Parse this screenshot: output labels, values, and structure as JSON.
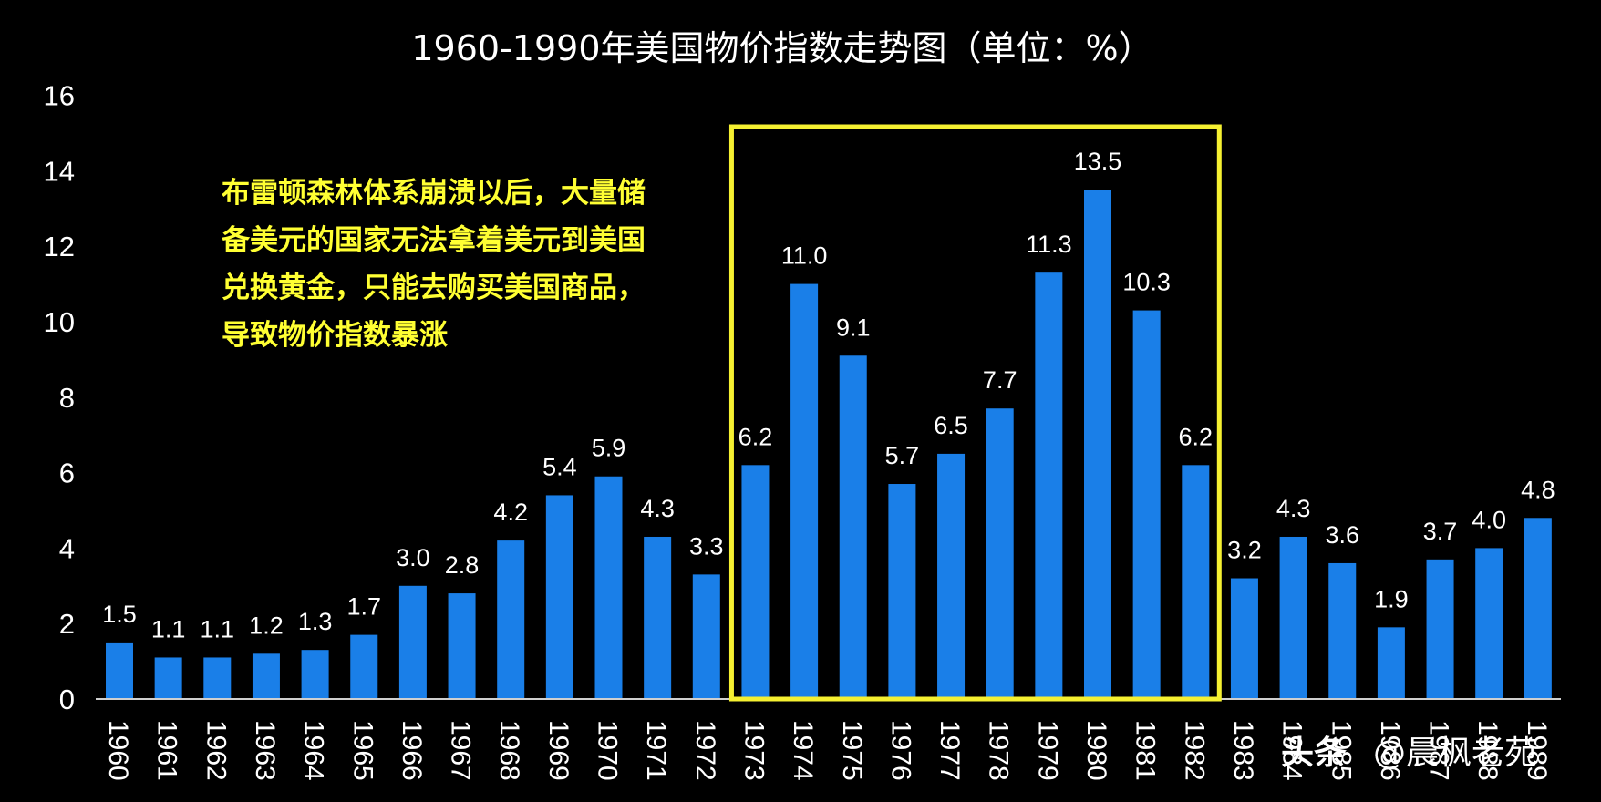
{
  "chart_data": {
    "type": "bar",
    "title": "1960-1990年美国物价指数走势图（单位：%）",
    "xlabel": "",
    "ylabel": "",
    "ylim": [
      0,
      16
    ],
    "yticks": [
      "0",
      "2",
      "4",
      "6",
      "8",
      "10",
      "12",
      "14",
      "16"
    ],
    "grid": false,
    "legend": "none",
    "categories": [
      "1960",
      "1961",
      "1962",
      "1963",
      "1964",
      "1965",
      "1966",
      "1967",
      "1968",
      "1969",
      "1970",
      "1971",
      "1972",
      "1973",
      "1974",
      "1975",
      "1976",
      "1977",
      "1978",
      "1979",
      "1980",
      "1981",
      "1982",
      "1983",
      "1984",
      "1985",
      "1986",
      "1987",
      "1988",
      "1989"
    ],
    "values": [
      1.5,
      1.1,
      1.1,
      1.2,
      1.3,
      1.7,
      3.0,
      2.8,
      4.2,
      5.4,
      5.9,
      4.3,
      3.3,
      6.2,
      11.0,
      9.1,
      5.7,
      6.5,
      7.7,
      11.3,
      13.5,
      10.3,
      6.2,
      3.2,
      4.3,
      3.6,
      1.9,
      3.7,
      4.0,
      4.8
    ],
    "value_labels": [
      "1.5",
      "1.1",
      "1.1",
      "1.2",
      "1.3",
      "1.7",
      "3.0",
      "2.8",
      "4.2",
      "5.4",
      "5.9",
      "4.3",
      "3.3",
      "6.2",
      "11.0",
      "9.1",
      "5.7",
      "6.5",
      "7.7",
      "11.3",
      "13.5",
      "10.3",
      "6.2",
      "3.2",
      "4.3",
      "3.6",
      "1.9",
      "3.7",
      "4.0",
      "4.8"
    ],
    "highlight_range": [
      "1973",
      "1982"
    ],
    "annotation": [
      "布雷顿森林体系崩溃以后，大量储",
      "备美元的国家无法拿着美元到美国",
      "兑换黄金，只能去购买美国商品，",
      "导致物价指数暴涨"
    ],
    "colors": {
      "background": "#000000",
      "bar": "#1a7fe8",
      "text": "#ffffff",
      "highlight": "#f5f031",
      "annotation": "#ffff33"
    }
  },
  "watermark": {
    "brand": "头条",
    "author": "@晨枫老苑"
  }
}
